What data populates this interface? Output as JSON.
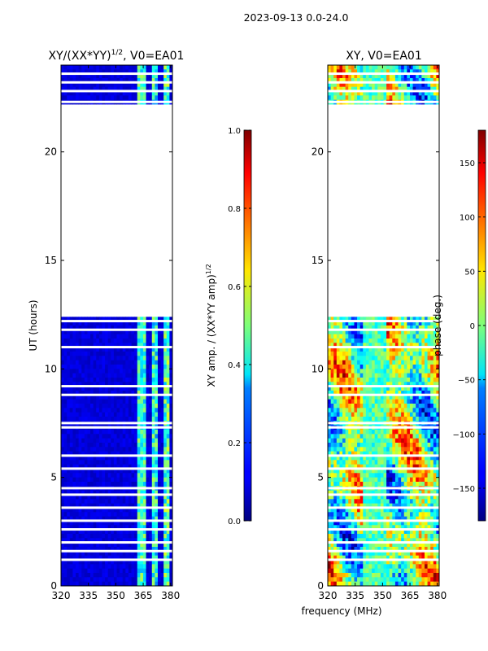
{
  "figure_title": "2023-09-13 0.0-24.0",
  "chart_data": [
    {
      "type": "heatmap",
      "title_main": "XY/(XX*YY)",
      "title_exp": "1/2",
      "title_rest": ", V0=EA01",
      "xlabel": "",
      "ylabel": "UT (hours)",
      "xlim": [
        320,
        381
      ],
      "ylim": [
        0,
        24
      ],
      "xticks": [
        320,
        335,
        350,
        365,
        380
      ],
      "yticks": [
        0,
        5,
        10,
        15,
        20
      ],
      "data_gap_hours": [
        12.4,
        22.1
      ],
      "colorbar": {
        "label_main": "XY amp. / (XX*YY amp)",
        "label_exp": "1/2",
        "range": [
          0.0,
          1.0
        ],
        "ticks": [
          "0.0",
          "0.2",
          "0.4",
          "0.6",
          "0.8",
          "1.0"
        ],
        "tick_values": [
          0.0,
          0.2,
          0.4,
          0.6,
          0.8,
          1.0
        ],
        "colormap": "jet"
      }
    },
    {
      "type": "heatmap",
      "title": "XY, V0=EA01",
      "xlabel": "frequency (MHz)",
      "ylabel": "",
      "xlim": [
        320,
        381
      ],
      "ylim": [
        0,
        24
      ],
      "xticks": [
        320,
        335,
        350,
        365,
        380
      ],
      "yticks": [
        0,
        5,
        10,
        15,
        20
      ],
      "data_gap_hours": [
        12.4,
        22.1
      ],
      "colorbar": {
        "label": "phase (deg.)",
        "range": [
          -180,
          180
        ],
        "ticks": [
          "150",
          "100",
          "50",
          "0",
          "−50",
          "−100",
          "−150"
        ],
        "tick_values": [
          150,
          100,
          50,
          0,
          -50,
          -100,
          -150
        ],
        "colormap": "jet"
      }
    }
  ],
  "x_tick_labels": [
    "320",
    "335",
    "350",
    "365",
    "380"
  ],
  "y_tick_labels": [
    "0",
    "5",
    "10",
    "15",
    "20"
  ],
  "colors": {
    "jet_low": "#00007f",
    "jet_high": "#7f0000"
  }
}
